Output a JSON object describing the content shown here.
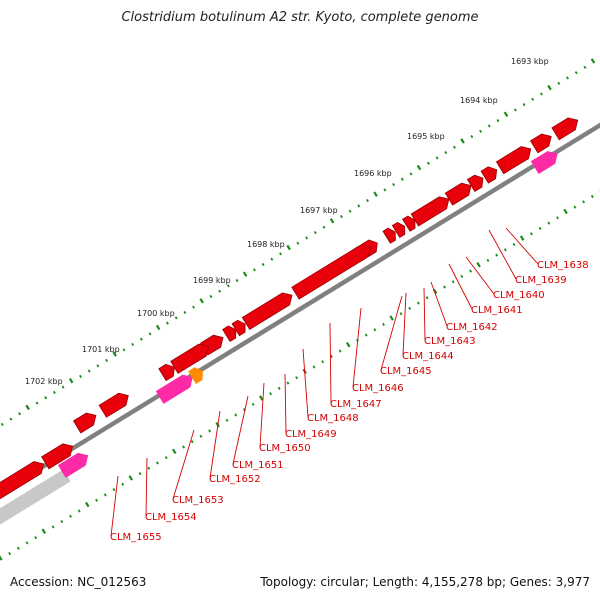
{
  "title": "Clostridium botulinum A2 str. Kyoto, complete genome",
  "footer": {
    "accession": "Accession: NC_012563",
    "summary": "Topology: circular; Length: 4,155,278 bp; Genes: 3,977"
  },
  "colors": {
    "cds": "#e8000b",
    "cds_dark": "#9c0000",
    "rna": "#ff2aa6",
    "pseudo": "#ff8c00",
    "backbone": "#808080",
    "tick": "#1a8a1a",
    "label": "#d40000",
    "gray_feature": "#c8c8c8"
  },
  "scale_labels": [
    "1693 kbp",
    "1694 kbp",
    "1695 kbp",
    "1696 kbp",
    "1697 kbp",
    "1698 kbp",
    "1699 kbp",
    "1700 kbp",
    "1701 kbp",
    "1702 kbp"
  ],
  "gene_labels": [
    "CLM_1638",
    "CLM_1639",
    "CLM_1640",
    "CLM_1641",
    "CLM_1642",
    "CLM_1643",
    "CLM_1644",
    "CLM_1645",
    "CLM_1646",
    "CLM_1647",
    "CLM_1648",
    "CLM_1649",
    "CLM_1650",
    "CLM_1651",
    "CLM_1652",
    "CLM_1653",
    "CLM_1654",
    "CLM_1655"
  ]
}
